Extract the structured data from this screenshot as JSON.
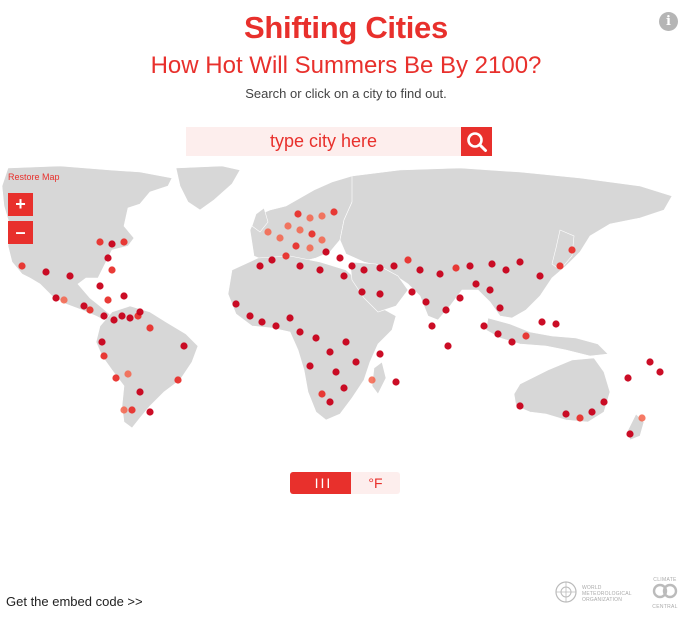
{
  "header": {
    "title": "Shifting Cities",
    "subtitle": "How Hot Will Summers Be By 2100?",
    "hint": "Search or click on a city to find out.",
    "info_glyph": "i"
  },
  "search": {
    "placeholder": "type city here",
    "icon": "search-icon"
  },
  "map_controls": {
    "restore_label": "Restore Map",
    "zoom_in": "+",
    "zoom_out": "–"
  },
  "units": {
    "celsius_label": " III",
    "fahrenheit_label": "°F",
    "selected": "celsius"
  },
  "footer": {
    "embed_label": "Get the embed code >>",
    "wmo_text_1": "WORLD",
    "wmo_text_2": "METEOROLOGICAL",
    "wmo_text_3": "ORGANIZATION",
    "cc_top": "CLIMATE",
    "cc_bottom": "CENTRAL"
  },
  "colors": {
    "accent": "#e8302c",
    "accent_light": "#fdeeed",
    "land": "#d7d7d7",
    "dot_dark": "#c8001a",
    "dot_mid": "#e8302c",
    "dot_light": "#f4634a"
  }
}
